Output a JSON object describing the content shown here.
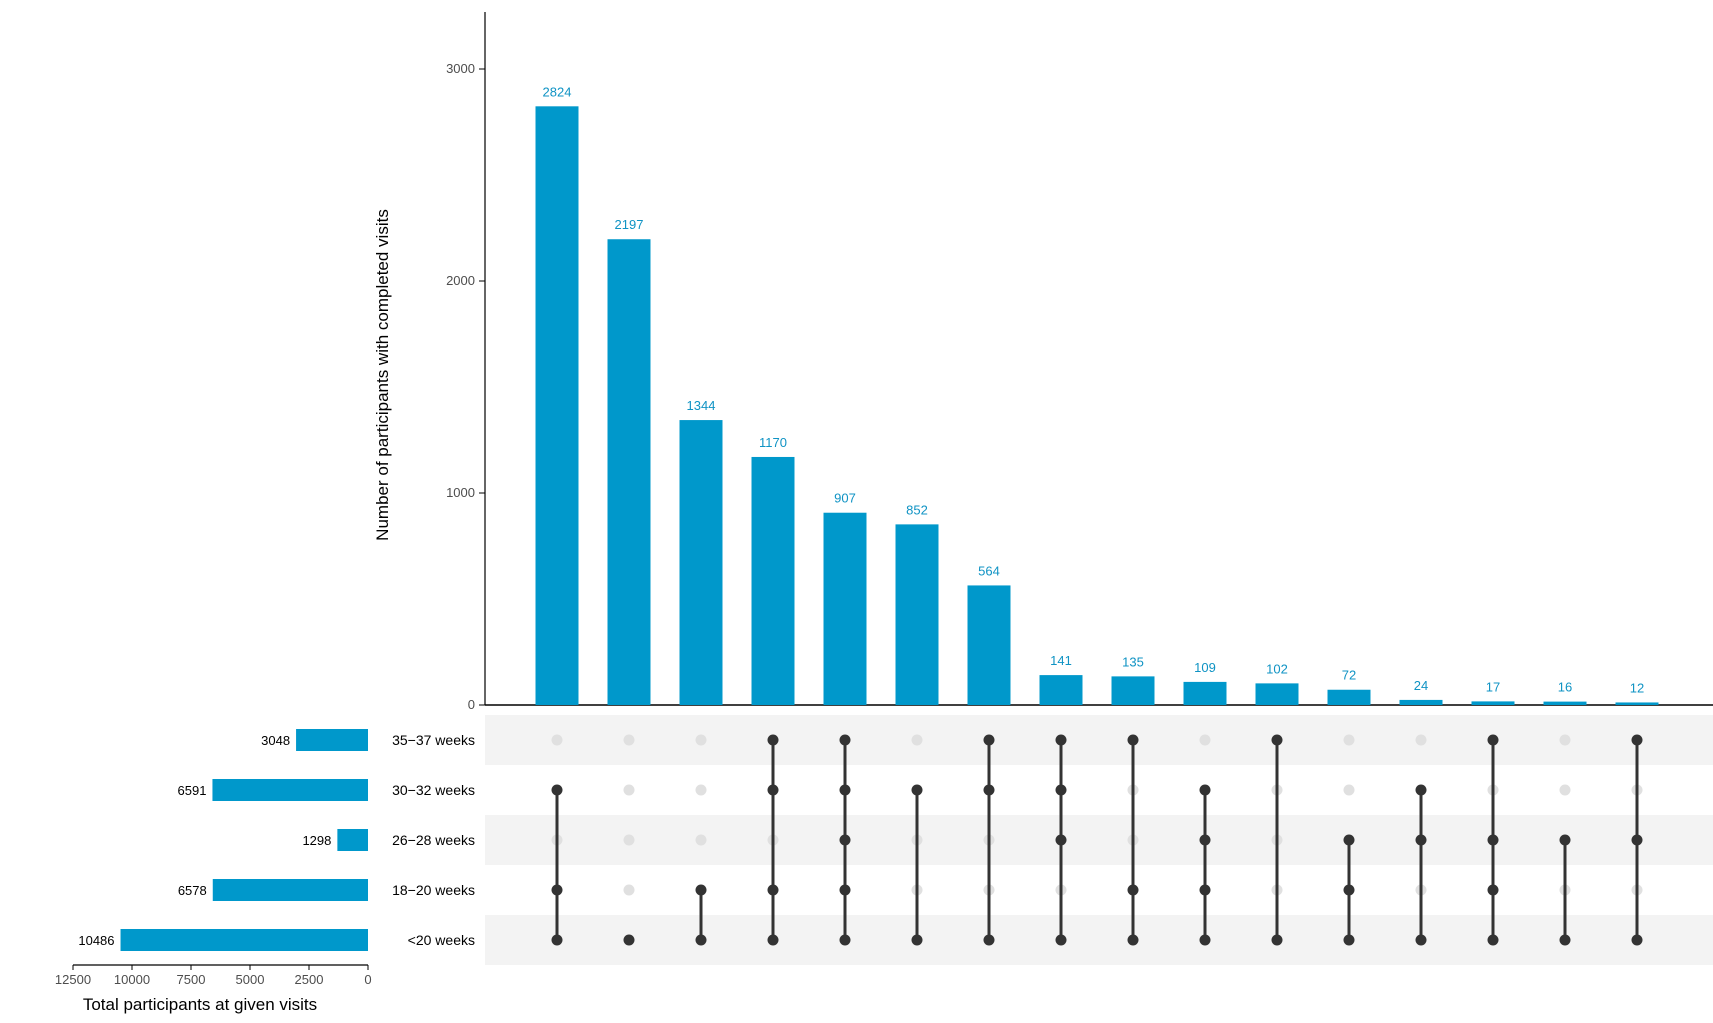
{
  "chart_data": {
    "type": "upset",
    "accent_color": "#0098cb",
    "dot_color": "#333333",
    "inactive_dot_color": "#e0e0e0",
    "stripe_color": "#f3f3f3",
    "intersections": {
      "ylabel": "Number of participants with completed visits",
      "ylim": [
        0,
        3250
      ],
      "yticks": [
        0,
        1000,
        2000,
        3000
      ],
      "values": [
        2824,
        2197,
        1344,
        1170,
        907,
        852,
        564,
        141,
        135,
        109,
        102,
        72,
        24,
        17,
        16,
        12
      ],
      "labels": [
        "2824",
        "2197",
        "1344",
        "1170",
        "907",
        "852",
        "564",
        "141",
        "135",
        "109",
        "102",
        "72",
        "24",
        "17",
        "16",
        "12"
      ],
      "membership": [
        [
          "<20 weeks",
          "18–20 weeks",
          "30–32 weeks"
        ],
        [
          "<20 weeks"
        ],
        [
          "<20 weeks",
          "18–20 weeks"
        ],
        [
          "<20 weeks",
          "18–20 weeks",
          "30–32 weeks",
          "35–37 weeks"
        ],
        [
          "<20 weeks",
          "18–20 weeks",
          "26–28 weeks",
          "30–32 weeks",
          "35–37 weeks"
        ],
        [
          "<20 weeks",
          "30–32 weeks"
        ],
        [
          "<20 weeks",
          "30–32 weeks",
          "35–37 weeks"
        ],
        [
          "<20 weeks",
          "26–28 weeks",
          "30–32 weeks",
          "35–37 weeks"
        ],
        [
          "<20 weeks",
          "18–20 weeks",
          "35–37 weeks"
        ],
        [
          "<20 weeks",
          "18–20 weeks",
          "26–28 weeks",
          "30–32 weeks"
        ],
        [
          "<20 weeks",
          "35–37 weeks"
        ],
        [
          "<20 weeks",
          "18–20 weeks",
          "26–28 weeks"
        ],
        [
          "<20 weeks",
          "26–28 weeks",
          "30–32 weeks"
        ],
        [
          "<20 weeks",
          "18–20 weeks",
          "26–28 weeks",
          "35–37 weeks"
        ],
        [
          "<20 weeks",
          "26–28 weeks"
        ],
        [
          "<20 weeks",
          "26–28 weeks",
          "35–37 weeks"
        ]
      ]
    },
    "sets": {
      "names": [
        "35−37 weeks",
        "30−32 weeks",
        "26−28 weeks",
        "18−20 weeks",
        "<20 weeks"
      ],
      "keys": [
        "35–37 weeks",
        "30–32 weeks",
        "26–28 weeks",
        "18–20 weeks",
        "<20 weeks"
      ],
      "sizes": [
        3048,
        6591,
        1298,
        6578,
        10486
      ],
      "size_labels": [
        "3048",
        "6591",
        "1298",
        "6578",
        "10486"
      ],
      "xlabel": "Total participants at given visits",
      "xlim": [
        0,
        12500
      ],
      "xticks": [
        12500,
        10000,
        7500,
        5000,
        2500,
        0
      ],
      "xtick_labels": [
        "12500",
        "10000",
        "7500",
        "5000",
        "2500",
        "0"
      ]
    }
  }
}
